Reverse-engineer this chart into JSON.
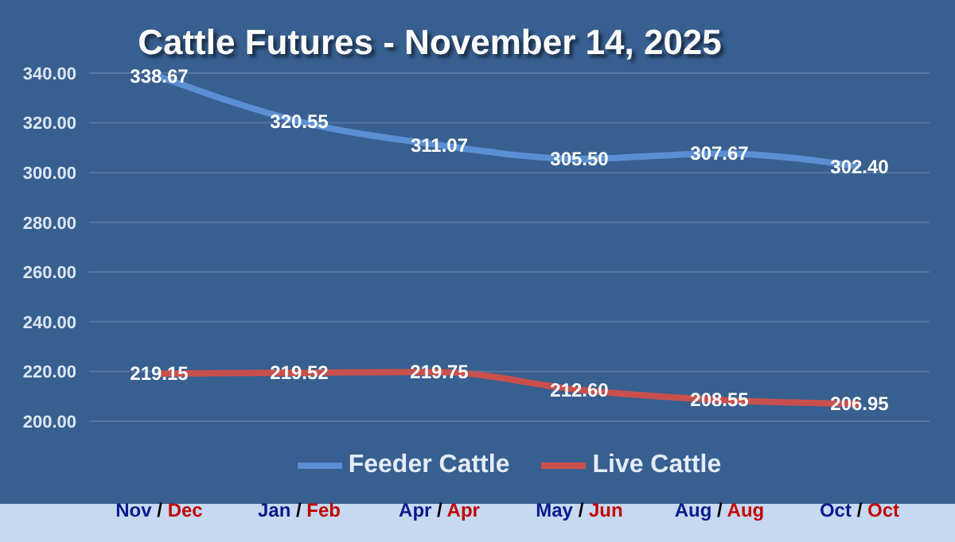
{
  "chart_data": {
    "type": "line",
    "title": "Cattle Futures - November 14, 2025",
    "categories": [
      "Nov / Dec",
      "Jan / Feb",
      "Apr / Apr",
      "May / Jun",
      "Aug / Aug",
      "Oct / Oct"
    ],
    "series": [
      {
        "name": "Feeder Cattle",
        "color": "#5b8fd4",
        "values": [
          338.67,
          320.55,
          311.07,
          305.5,
          307.67,
          302.4
        ],
        "value_labels": [
          "338.67",
          "320.55",
          "311.07",
          "305.50",
          "307.67",
          "302.40"
        ]
      },
      {
        "name": "Live Cattle",
        "color": "#c9504c",
        "values": [
          219.15,
          219.52,
          219.75,
          212.6,
          208.55,
          206.95
        ],
        "value_labels": [
          "219.15",
          "219.52",
          "219.75",
          "212.60",
          "208.55",
          "206.95"
        ]
      }
    ],
    "ylim": [
      200,
      340
    ],
    "yticks": [
      {
        "value": 200,
        "label": "200.00"
      },
      {
        "value": 220,
        "label": "220.00"
      },
      {
        "value": 240,
        "label": "240.00"
      },
      {
        "value": 260,
        "label": "260.00"
      },
      {
        "value": 280,
        "label": "280.00"
      },
      {
        "value": 300,
        "label": "300.00"
      },
      {
        "value": 320,
        "label": "320.00"
      },
      {
        "value": 340,
        "label": "340.00"
      }
    ],
    "grid": "y",
    "legend": "bottom",
    "marker": "none",
    "line_style": "solid"
  }
}
